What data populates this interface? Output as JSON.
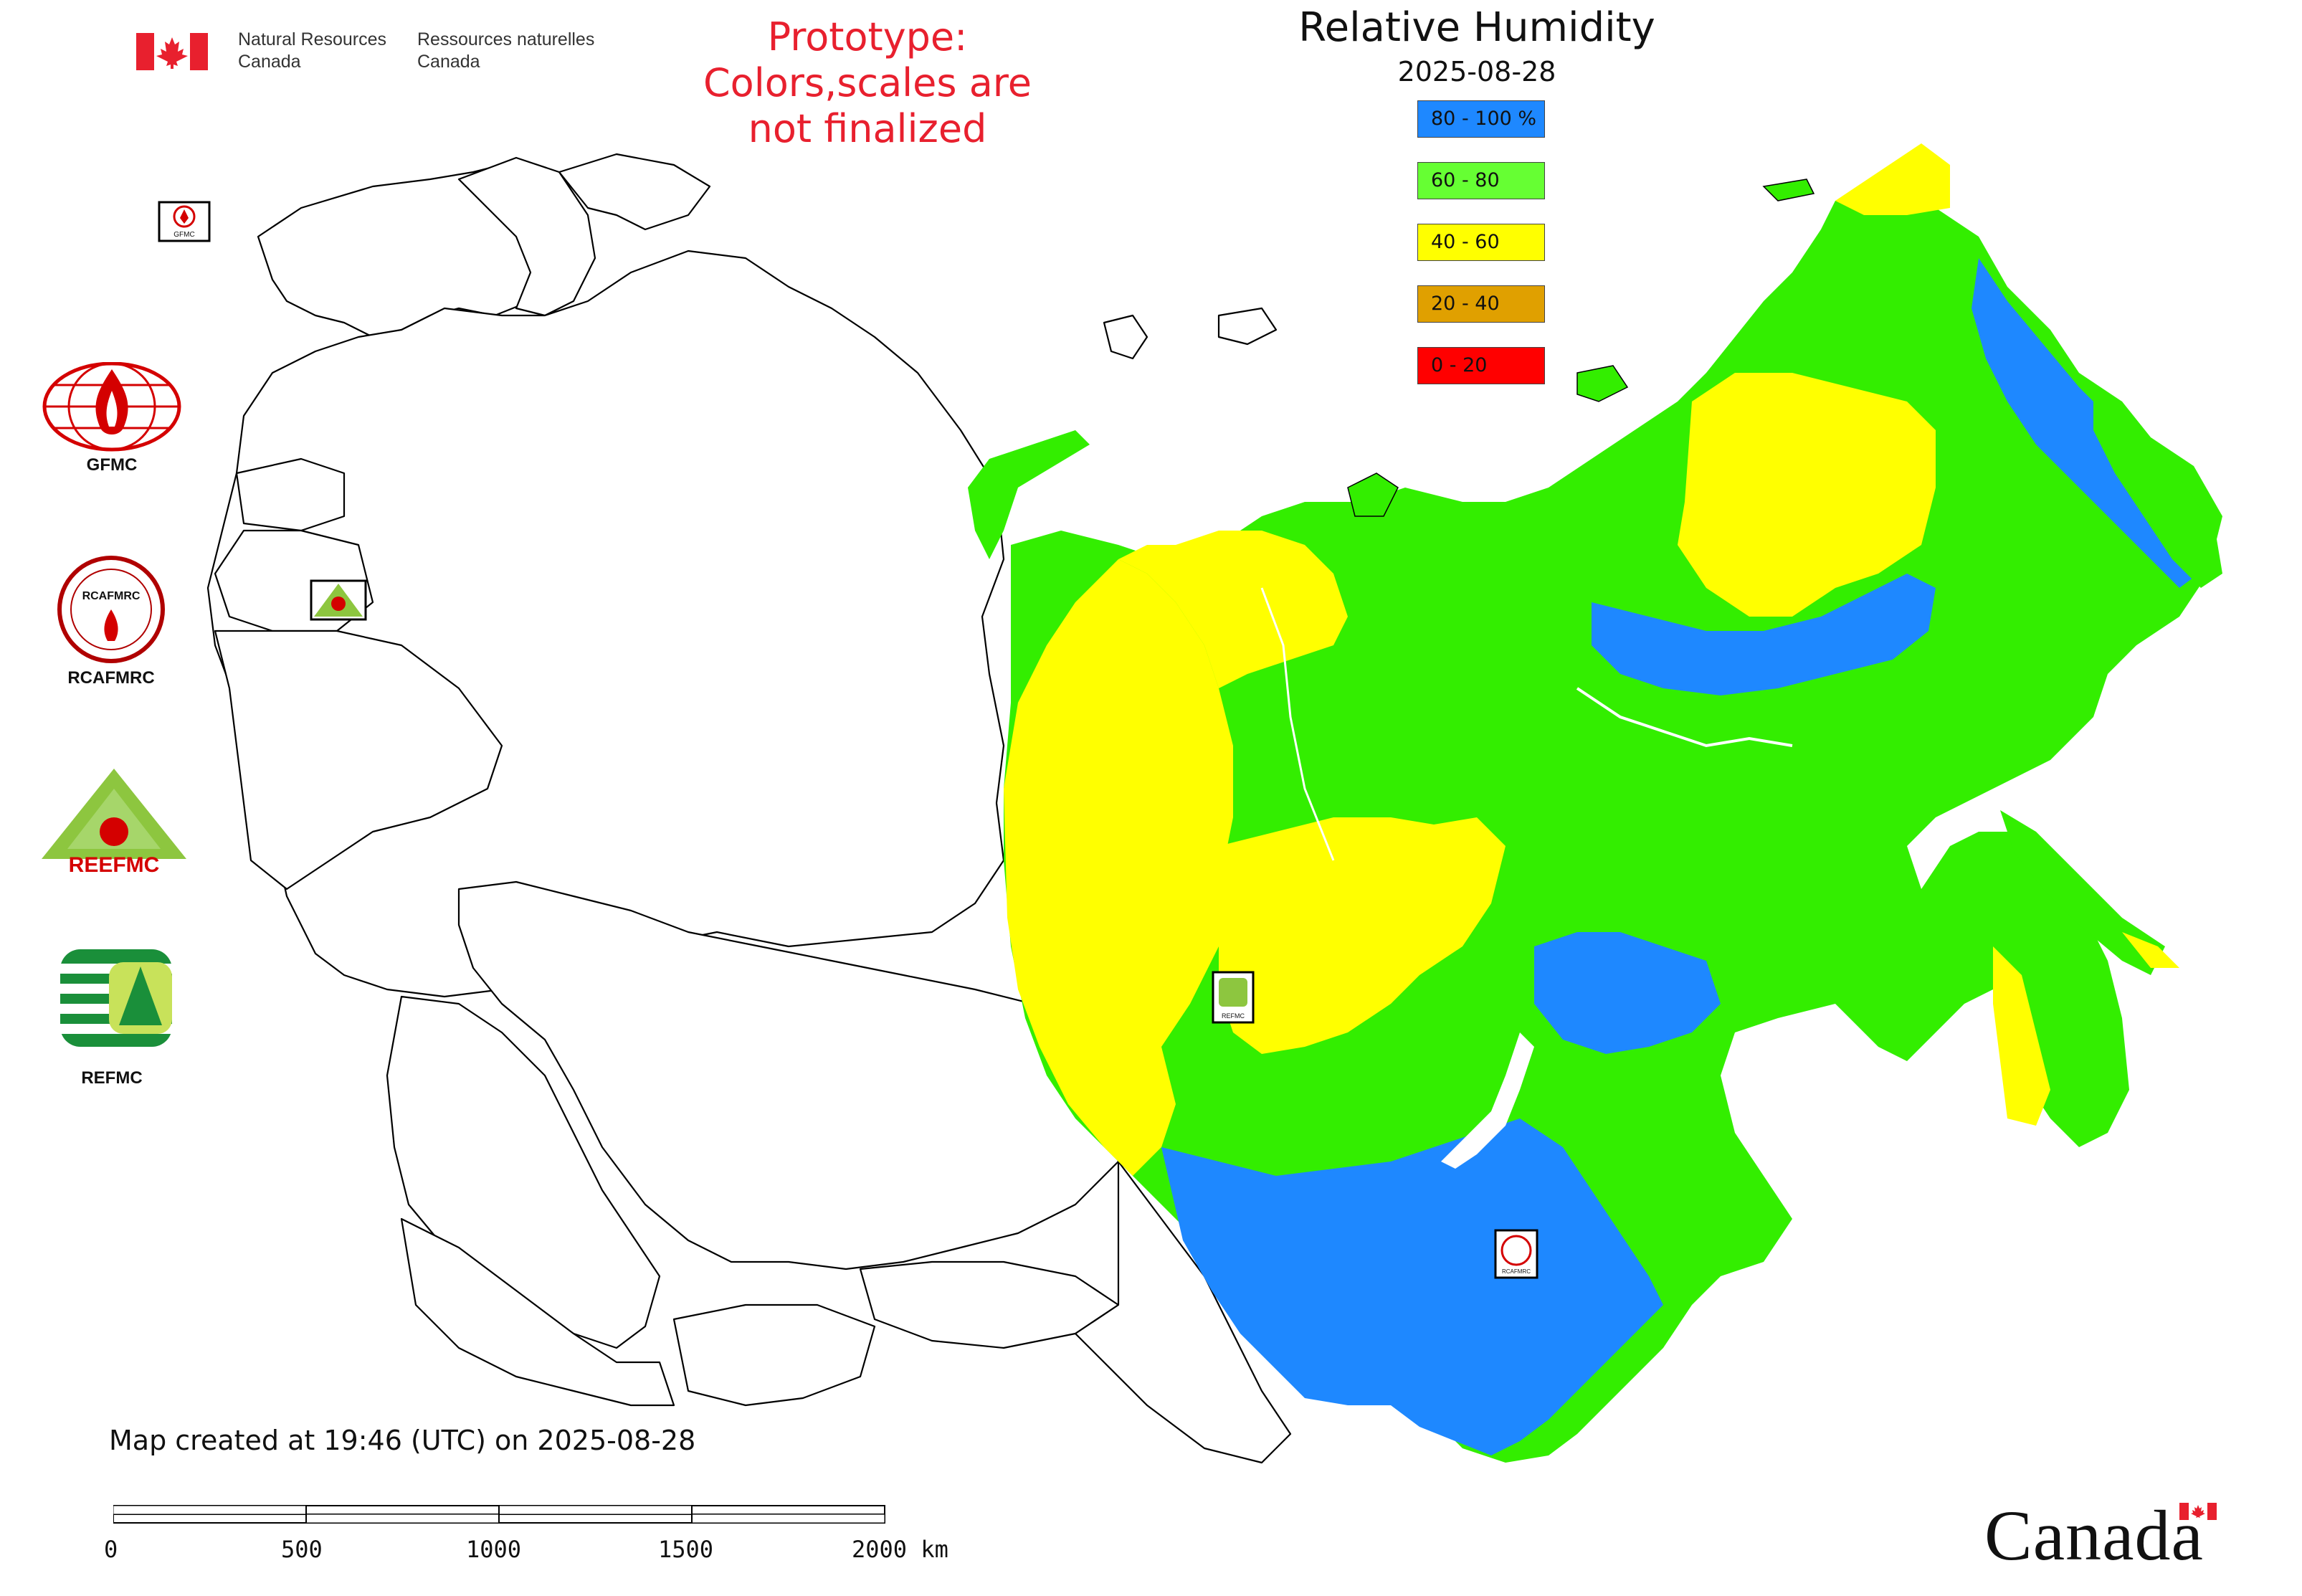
{
  "header": {
    "dept_en_line1": "Natural Resources",
    "dept_en_line2": "Canada",
    "dept_fr_line1": "Ressources naturelles",
    "dept_fr_line2": "Canada"
  },
  "notice": {
    "line1": "Prototype:",
    "line2": "Colors,scales are not finalized"
  },
  "legend": {
    "title": "Relative Humidity",
    "date": "2025-08-28",
    "items": [
      {
        "label": "80 - 100 %",
        "color": "#1e88ff"
      },
      {
        "label": "60 - 80",
        "color": "#66ff33"
      },
      {
        "label": "40 - 60",
        "color": "#ffff00"
      },
      {
        "label": "20 - 40",
        "color": "#e0a000"
      },
      {
        "label": "0 - 20",
        "color": "#ff0000"
      }
    ]
  },
  "logos": [
    {
      "name": "GFMC"
    },
    {
      "name": "RCAFMRC",
      "badge_text": "RCAFMRC"
    },
    {
      "name": "REEFMC",
      "badge_text": "REEFMC"
    },
    {
      "name": "REFMC"
    }
  ],
  "map_markers": [
    {
      "name": "GFMC"
    },
    {
      "name": "REEFMC"
    },
    {
      "name": "REFMC"
    },
    {
      "name": "RCAFMRC"
    }
  ],
  "footer": {
    "created": "Map created at 19:46 (UTC) on 2025-08-28",
    "scale_ticks": [
      "0",
      "500",
      "1000",
      "1500",
      "2000 km"
    ],
    "wordmark": "Canada"
  },
  "colors": {
    "blue": "#1e88ff",
    "green": "#33ee00",
    "yellow": "#ffff00",
    "notice_red": "#e8202e"
  }
}
